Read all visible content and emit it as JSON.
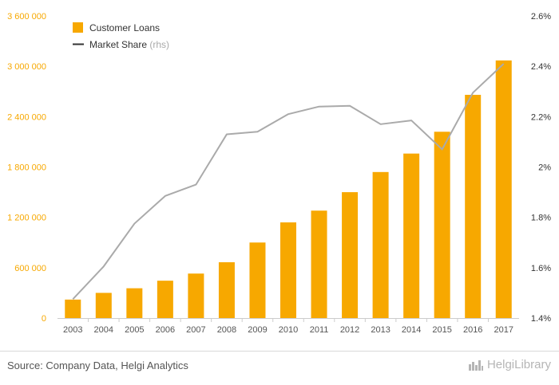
{
  "chart_data": {
    "type": "bar",
    "categories": [
      "2003",
      "2004",
      "2005",
      "2006",
      "2007",
      "2008",
      "2009",
      "2010",
      "2011",
      "2012",
      "2013",
      "2014",
      "2015",
      "2016",
      "2017"
    ],
    "series": [
      {
        "name": "Customer Loans",
        "type": "bar",
        "axis": "left",
        "color": "#f7a800",
        "values": [
          220000,
          300000,
          355000,
          445000,
          530000,
          665000,
          900000,
          1140000,
          1280000,
          1500000,
          1740000,
          1960000,
          2220000,
          2660000,
          3070000
        ]
      },
      {
        "name": "Market Share",
        "name_suffix": "(rhs)",
        "type": "line",
        "axis": "right",
        "color": "#aaaaaa",
        "values": [
          1.475,
          1.605,
          1.775,
          1.885,
          1.93,
          2.13,
          2.14,
          2.21,
          2.24,
          2.243,
          2.17,
          2.185,
          2.07,
          2.295,
          2.41
        ]
      }
    ],
    "ylim": [
      0,
      3600000
    ],
    "y_ticks": [
      0,
      600000,
      1200000,
      1800000,
      2400000,
      3000000,
      3600000
    ],
    "y_tick_labels": [
      "0",
      "600 000",
      "1 200 000",
      "1 800 000",
      "2 400 000",
      "3 000 000",
      "3 600 000"
    ],
    "y2lim": [
      1.4,
      2.6
    ],
    "y2_ticks": [
      1.4,
      1.6,
      1.8,
      2.0,
      2.2,
      2.4,
      2.6
    ],
    "y2_tick_labels": [
      "1.4%",
      "1.6%",
      "1.8%",
      "2%",
      "2.2%",
      "2.4%",
      "2.6%"
    ],
    "legend_position": "top-left",
    "grid": false,
    "title": "",
    "xlabel": "",
    "ylabel": ""
  },
  "colors": {
    "bar": "#f7a800",
    "line": "#aaaaaa",
    "left_axis_text": "#f7a800",
    "right_axis_text": "#333333",
    "x_axis_text": "#555555"
  },
  "footer": {
    "source": "Source: Company Data, Helgi Analytics",
    "brand": "HelgiLibrary",
    "brand_icon": "city-skyline-icon"
  }
}
